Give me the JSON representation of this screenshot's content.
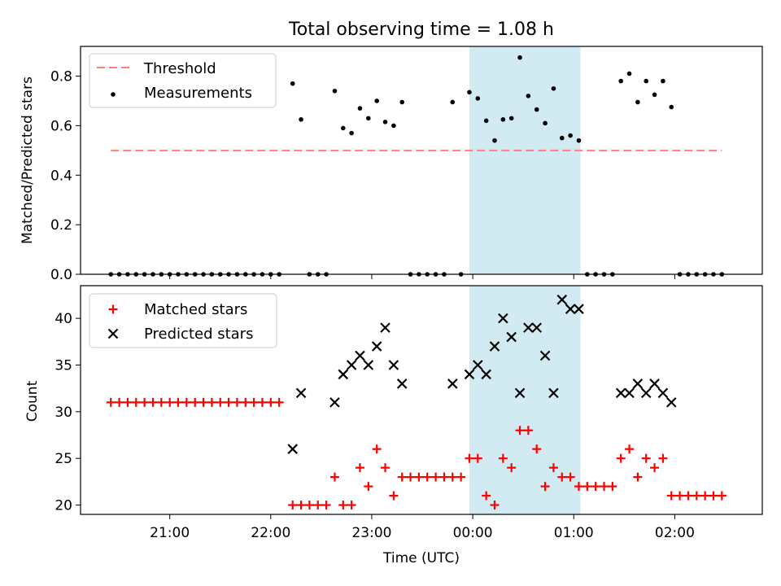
{
  "title": "Total observing time = 1.08 h",
  "colors": {
    "threshold": "#ff7f7f",
    "measurement": "#000000",
    "matched": "#ff0000",
    "predicted": "#000000",
    "shade": "#add8e6"
  },
  "chart_data": [
    {
      "type": "scatter",
      "ylabel": "Matched/Predicted stars",
      "ylim": [
        0,
        0.92
      ],
      "yticks": [
        "0.0",
        "0.2",
        "0.4",
        "0.6",
        "0.8"
      ],
      "legend": {
        "position": "top-left",
        "entries": [
          "Threshold",
          "Measurements"
        ]
      },
      "threshold": {
        "name": "Threshold",
        "value": 0.5,
        "x_start": "20:25",
        "x_end": "02:28"
      },
      "measurements": {
        "name": "Measurements",
        "x": [
          "20:25",
          "20:30",
          "20:35",
          "20:40",
          "20:45",
          "20:50",
          "20:55",
          "21:00",
          "21:05",
          "21:10",
          "21:15",
          "21:20",
          "21:25",
          "21:30",
          "21:35",
          "21:40",
          "21:45",
          "21:50",
          "21:55",
          "22:00",
          "22:05",
          "22:13",
          "22:18",
          "22:23",
          "22:28",
          "22:33",
          "22:38",
          "22:43",
          "22:48",
          "22:53",
          "22:58",
          "23:03",
          "23:08",
          "23:13",
          "23:18",
          "23:23",
          "23:28",
          "23:33",
          "23:38",
          "23:43",
          "23:48",
          "23:53",
          "23:58",
          "00:03",
          "00:08",
          "00:13",
          "00:18",
          "00:23",
          "00:28",
          "00:33",
          "00:38",
          "00:43",
          "00:48",
          "00:53",
          "00:58",
          "01:03",
          "01:08",
          "01:13",
          "01:18",
          "01:23",
          "01:28",
          "01:33",
          "01:38",
          "01:43",
          "01:48",
          "01:53",
          "01:58",
          "02:03",
          "02:08",
          "02:13",
          "02:18",
          "02:23",
          "02:28"
        ],
        "y": [
          0,
          0,
          0,
          0,
          0,
          0,
          0,
          0,
          0,
          0,
          0,
          0,
          0,
          0,
          0,
          0,
          0,
          0,
          0,
          0,
          0,
          0.77,
          0.625,
          0,
          0,
          0,
          0.74,
          0.59,
          0.57,
          0.67,
          0.63,
          0.7,
          0.615,
          0.6,
          0.695,
          0,
          0,
          0,
          0,
          0,
          0.695,
          0,
          0.735,
          0.71,
          0.62,
          0.54,
          0.625,
          0.63,
          0.875,
          0.72,
          0.665,
          0.61,
          0.75,
          0.55,
          0.56,
          0.54,
          0,
          0,
          0,
          0,
          0.78,
          0.81,
          0.695,
          0.78,
          0.725,
          0.78,
          0.675,
          0,
          0,
          0,
          0,
          0,
          0
        ]
      }
    },
    {
      "type": "scatter",
      "xlabel": "Time (UTC)",
      "ylabel": "Count",
      "ylim": [
        19,
        43.5
      ],
      "yticks": [
        "20",
        "25",
        "30",
        "35",
        "40"
      ],
      "xticks": [
        "21:00",
        "22:00",
        "23:00",
        "00:00",
        "01:00",
        "02:00"
      ],
      "x_axis_range": [
        "20:07",
        "02:52"
      ],
      "legend": {
        "position": "top-left",
        "entries": [
          "Matched stars",
          "Predicted stars"
        ]
      },
      "shaded_interval": {
        "x_start": "23:58",
        "x_end": "01:04"
      },
      "series": [
        {
          "name": "Matched stars",
          "marker": "plus",
          "x": [
            "20:25",
            "20:30",
            "20:35",
            "20:40",
            "20:45",
            "20:50",
            "20:55",
            "21:00",
            "21:05",
            "21:10",
            "21:15",
            "21:20",
            "21:25",
            "21:30",
            "21:35",
            "21:40",
            "21:45",
            "21:50",
            "21:55",
            "22:00",
            "22:05",
            "22:13",
            "22:18",
            "22:23",
            "22:28",
            "22:33",
            "22:38",
            "22:43",
            "22:48",
            "22:53",
            "22:58",
            "23:03",
            "23:08",
            "23:13",
            "23:18",
            "23:23",
            "23:28",
            "23:33",
            "23:38",
            "23:43",
            "23:48",
            "23:53",
            "23:58",
            "00:03",
            "00:08",
            "00:13",
            "00:18",
            "00:23",
            "00:28",
            "00:33",
            "00:38",
            "00:43",
            "00:48",
            "00:53",
            "00:58",
            "01:03",
            "01:08",
            "01:13",
            "01:18",
            "01:23",
            "01:28",
            "01:33",
            "01:38",
            "01:43",
            "01:48",
            "01:53",
            "01:58",
            "02:03",
            "02:08",
            "02:13",
            "02:18",
            "02:23",
            "02:28"
          ],
          "values": [
            31,
            31,
            31,
            31,
            31,
            31,
            31,
            31,
            31,
            31,
            31,
            31,
            31,
            31,
            31,
            31,
            31,
            31,
            31,
            31,
            31,
            20,
            20,
            20,
            20,
            20,
            23,
            20,
            20,
            24,
            22,
            26,
            24,
            21,
            23,
            23,
            23,
            23,
            23,
            23,
            23,
            23,
            25,
            25,
            21,
            20,
            25,
            24,
            28,
            28,
            26,
            22,
            24,
            23,
            23,
            22,
            22,
            22,
            22,
            22,
            25,
            26,
            23,
            25,
            24,
            25,
            21,
            21,
            21,
            21,
            21,
            21,
            21
          ]
        },
        {
          "name": "Predicted stars",
          "marker": "x",
          "x": [
            "22:13",
            "22:18",
            "22:38",
            "22:43",
            "22:48",
            "22:53",
            "22:58",
            "23:03",
            "23:08",
            "23:13",
            "23:18",
            "23:48",
            "23:58",
            "00:03",
            "00:08",
            "00:13",
            "00:18",
            "00:23",
            "00:28",
            "00:33",
            "00:38",
            "00:43",
            "00:48",
            "00:53",
            "00:58",
            "01:03",
            "01:28",
            "01:33",
            "01:38",
            "01:43",
            "01:48",
            "01:53",
            "01:58"
          ],
          "values": [
            26,
            32,
            31,
            34,
            35,
            36,
            35,
            37,
            39,
            35,
            33,
            33,
            34,
            35,
            34,
            37,
            40,
            38,
            32,
            39,
            39,
            36,
            32,
            42,
            41,
            41,
            32,
            32,
            33,
            32,
            33,
            32,
            31
          ]
        }
      ]
    }
  ]
}
